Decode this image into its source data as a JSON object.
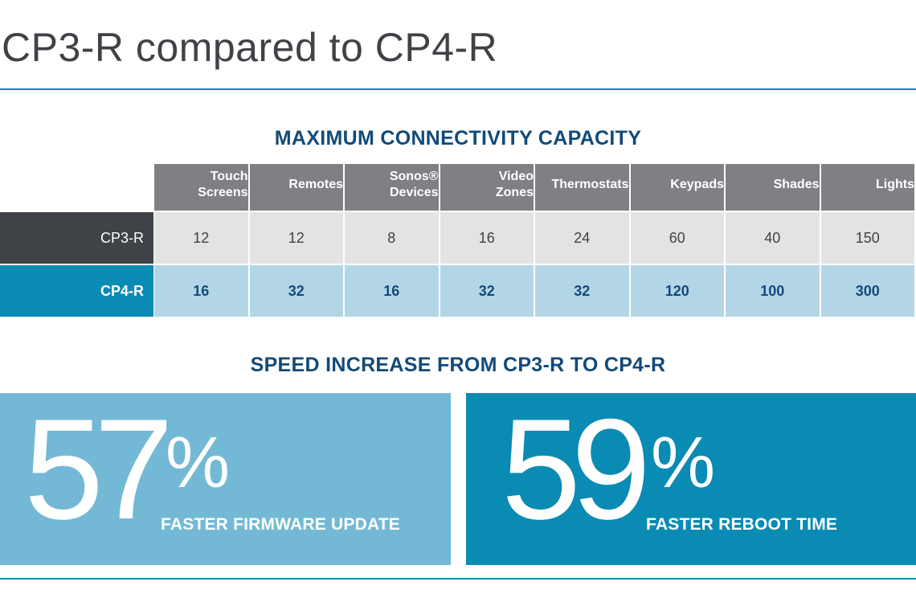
{
  "title": "CP3-R compared to CP4-R",
  "chart_data": [
    {
      "type": "table",
      "title": "MAXIMUM CONNECTIVITY CAPACITY",
      "columns": [
        [
          "Touch",
          "Screens"
        ],
        [
          "",
          "Remotes"
        ],
        [
          "Sonos®",
          "Devices"
        ],
        [
          "Video",
          "Zones"
        ],
        [
          "",
          "Thermostats"
        ],
        [
          "",
          "Keypads"
        ],
        [
          "",
          "Shades"
        ],
        [
          "",
          "Lights"
        ]
      ],
      "rows": [
        {
          "label": "CP3-R",
          "values": [
            "12",
            "12",
            "8",
            "16",
            "24",
            "60",
            "40",
            "150"
          ]
        },
        {
          "label": "CP4-R",
          "values": [
            "16",
            "32",
            "16",
            "32",
            "32",
            "120",
            "100",
            "300"
          ]
        }
      ]
    },
    {
      "type": "table",
      "title": "SPEED INCREASE FROM CP3-R TO CP4-R",
      "items": [
        {
          "value": "57",
          "unit": "%",
          "caption": "FASTER FIRMWARE UPDATE"
        },
        {
          "value": "59",
          "unit": "%",
          "caption": "FASTER REBOOT TIME"
        }
      ]
    }
  ],
  "colors": {
    "accent": "#0a8bb3",
    "accent_light": "#73b9d5",
    "heading": "#124a7a",
    "dark": "#3f4246",
    "header_gray": "#7f8083"
  }
}
